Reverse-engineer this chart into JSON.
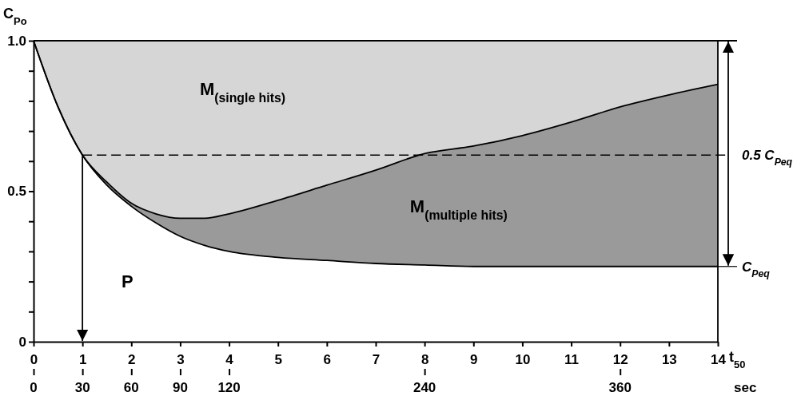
{
  "chart_data": {
    "type": "area",
    "stacked": true,
    "xlabel": "t$_{50}$",
    "ylabel": "C$_{Po}$",
    "x2label": "sec",
    "x": [
      0,
      0.5,
      1,
      1.5,
      2,
      2.5,
      3,
      3.5,
      4,
      5,
      6,
      7,
      8,
      9,
      10,
      11,
      12,
      13,
      14
    ],
    "series": [
      {
        "name": "P",
        "color": "#ffffff",
        "values": [
          1.0,
          0.78,
          0.62,
          0.52,
          0.45,
          0.395,
          0.35,
          0.32,
          0.3,
          0.28,
          0.27,
          0.26,
          0.255,
          0.25,
          0.25,
          0.25,
          0.25,
          0.25,
          0.25
        ]
      },
      {
        "name": "M$_{(multiple hits)}$",
        "color": "#9a9a9a",
        "values": [
          0,
          0,
          0,
          0.01,
          0.01,
          0.03,
          0.06,
          0.09,
          0.125,
          0.19,
          0.25,
          0.31,
          0.37,
          0.4,
          0.435,
          0.48,
          0.53,
          0.57,
          0.605
        ]
      },
      {
        "name": "M$_{(single hits)}$",
        "color": "#d6d6d6",
        "values": [
          0,
          0.22,
          0.38,
          0.47,
          0.54,
          0.575,
          0.59,
          0.59,
          0.575,
          0.53,
          0.48,
          0.43,
          0.375,
          0.35,
          0.315,
          0.27,
          0.22,
          0.18,
          0.145
        ]
      }
    ],
    "xlim": [
      0,
      14
    ],
    "xticks": [
      0,
      1,
      2,
      3,
      4,
      5,
      6,
      7,
      8,
      9,
      10,
      11,
      12,
      13,
      14
    ],
    "x2lim": [
      0,
      420
    ],
    "x2ticks": [
      0,
      30,
      60,
      90,
      120,
      240,
      360
    ],
    "ylim": [
      0,
      1
    ],
    "yticks": [
      0,
      {
        "value": 0.1,
        "label": null
      },
      {
        "value": 0.2,
        "label": null
      },
      {
        "value": 0.3,
        "label": null
      },
      {
        "value": 0.4,
        "label": null
      },
      0.5,
      {
        "value": 0.6,
        "label": null
      },
      {
        "value": 0.7,
        "label": null
      },
      {
        "value": 0.8,
        "label": null
      },
      {
        "value": 0.9,
        "label": null
      },
      {
        "value": 1,
        "label": "1.0"
      }
    ],
    "ref_lines": [
      {
        "axis": "y",
        "value": 0.62,
        "label": "0.5 C$_{Peq}$",
        "line_style": "dashed"
      },
      {
        "axis": "y",
        "value": 0.25,
        "label": "C$_{Peq}$"
      },
      {
        "axis": "x",
        "value": 1
      }
    ],
    "orientation": "vertical"
  }
}
